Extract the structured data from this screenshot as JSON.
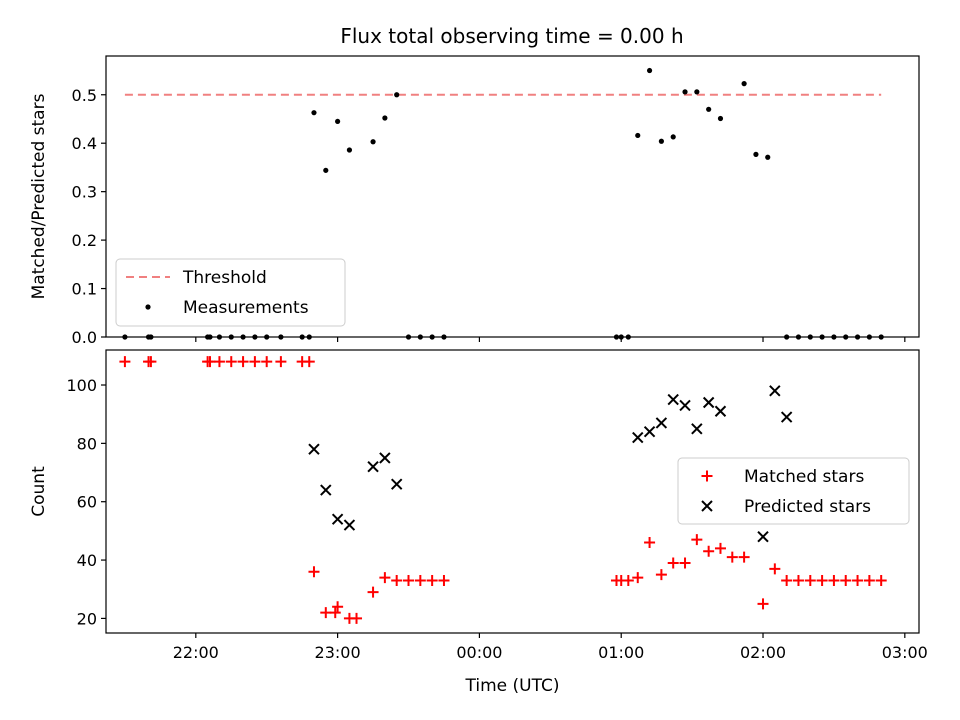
{
  "figure_title": "Flux total observing time = 0.00 h",
  "colors": {
    "threshold": "#f08080",
    "measurements": "#000000",
    "matched": "#ff0000",
    "predicted": "#000000"
  },
  "chart_data": [
    {
      "type": "scatter",
      "title": "Flux total observing time = 0.00 h",
      "xlabel": "",
      "ylabel": "Matched/Predicted stars",
      "xlim": [
        "21:22",
        "03:06"
      ],
      "ylim": [
        0,
        0.58
      ],
      "yticks": [
        0.0,
        0.1,
        0.2,
        0.3,
        0.4,
        0.5
      ],
      "xticks": [
        "22:00",
        "23:00",
        "00:00",
        "01:00",
        "02:00",
        "03:00"
      ],
      "legend": {
        "position": "lower-left",
        "entries": [
          "Threshold",
          "Measurements"
        ]
      },
      "threshold": {
        "name": "Threshold",
        "value": 0.5,
        "x_start": "21:30",
        "x_end": "02:50"
      },
      "series": [
        {
          "name": "Measurements",
          "marker": "dot",
          "points": [
            [
              "21:30",
              0
            ],
            [
              "21:40",
              0
            ],
            [
              "21:41",
              0
            ],
            [
              "22:05",
              0
            ],
            [
              "22:06",
              0
            ],
            [
              "22:10",
              0
            ],
            [
              "22:15",
              0
            ],
            [
              "22:20",
              0
            ],
            [
              "22:25",
              0
            ],
            [
              "22:30",
              0
            ],
            [
              "22:36",
              0
            ],
            [
              "22:45",
              0
            ],
            [
              "22:48",
              0
            ],
            [
              "22:50",
              0.463
            ],
            [
              "22:55",
              0.344
            ],
            [
              "23:00",
              0.445
            ],
            [
              "23:05",
              0.386
            ],
            [
              "23:15",
              0.403
            ],
            [
              "23:20",
              0.452
            ],
            [
              "23:25",
              0.5
            ],
            [
              "23:30",
              0
            ],
            [
              "23:35",
              0
            ],
            [
              "23:40",
              0
            ],
            [
              "23:45",
              0
            ],
            [
              "00:58",
              0
            ],
            [
              "01:00",
              0
            ],
            [
              "01:03",
              0
            ],
            [
              "01:07",
              0.416
            ],
            [
              "01:12",
              0.55
            ],
            [
              "01:17",
              0.404
            ],
            [
              "01:22",
              0.413
            ],
            [
              "01:27",
              0.506
            ],
            [
              "01:32",
              0.506
            ],
            [
              "01:37",
              0.47
            ],
            [
              "01:42",
              0.451
            ],
            [
              "01:52",
              0.523
            ],
            [
              "01:57",
              0.377
            ],
            [
              "02:02",
              0.371
            ],
            [
              "02:10",
              0
            ],
            [
              "02:15",
              0
            ],
            [
              "02:20",
              0
            ],
            [
              "02:25",
              0
            ],
            [
              "02:30",
              0
            ],
            [
              "02:35",
              0
            ],
            [
              "02:40",
              0
            ],
            [
              "02:45",
              0
            ],
            [
              "02:50",
              0
            ]
          ]
        }
      ]
    },
    {
      "type": "scatter",
      "title": "",
      "xlabel": "Time (UTC)",
      "ylabel": "Count",
      "xlim": [
        "21:22",
        "03:06"
      ],
      "ylim": [
        15,
        112
      ],
      "yticks": [
        20,
        40,
        60,
        80,
        100
      ],
      "xticks": [
        "22:00",
        "23:00",
        "00:00",
        "01:00",
        "02:00",
        "03:00"
      ],
      "legend": {
        "position": "center-right",
        "entries": [
          "Matched stars",
          "Predicted stars"
        ]
      },
      "series": [
        {
          "name": "Matched stars",
          "marker": "plus",
          "points": [
            [
              "21:30",
              108
            ],
            [
              "21:40",
              108
            ],
            [
              "21:41",
              108
            ],
            [
              "22:05",
              108
            ],
            [
              "22:06",
              108
            ],
            [
              "22:10",
              108
            ],
            [
              "22:15",
              108
            ],
            [
              "22:20",
              108
            ],
            [
              "22:25",
              108
            ],
            [
              "22:30",
              108
            ],
            [
              "22:36",
              108
            ],
            [
              "22:45",
              108
            ],
            [
              "22:48",
              108
            ],
            [
              "22:50",
              36
            ],
            [
              "22:55",
              22
            ],
            [
              "22:59",
              22
            ],
            [
              "23:00",
              24
            ],
            [
              "23:05",
              20
            ],
            [
              "23:08",
              20
            ],
            [
              "23:15",
              29
            ],
            [
              "23:20",
              34
            ],
            [
              "23:25",
              33
            ],
            [
              "23:30",
              33
            ],
            [
              "23:35",
              33
            ],
            [
              "23:40",
              33
            ],
            [
              "23:45",
              33
            ],
            [
              "00:58",
              33
            ],
            [
              "01:00",
              33
            ],
            [
              "01:03",
              33
            ],
            [
              "01:07",
              34
            ],
            [
              "01:12",
              46
            ],
            [
              "01:17",
              35
            ],
            [
              "01:22",
              39
            ],
            [
              "01:27",
              39
            ],
            [
              "01:32",
              47
            ],
            [
              "01:37",
              43
            ],
            [
              "01:42",
              44
            ],
            [
              "01:47",
              41
            ],
            [
              "01:52",
              41
            ],
            [
              "02:00",
              25
            ],
            [
              "02:05",
              37
            ],
            [
              "02:10",
              33
            ],
            [
              "02:15",
              33
            ],
            [
              "02:20",
              33
            ],
            [
              "02:25",
              33
            ],
            [
              "02:30",
              33
            ],
            [
              "02:35",
              33
            ],
            [
              "02:40",
              33
            ],
            [
              "02:45",
              33
            ],
            [
              "02:50",
              33
            ]
          ]
        },
        {
          "name": "Predicted stars",
          "marker": "x",
          "points": [
            [
              "22:50",
              78
            ],
            [
              "22:55",
              64
            ],
            [
              "23:00",
              54
            ],
            [
              "23:05",
              52
            ],
            [
              "23:15",
              72
            ],
            [
              "23:20",
              75
            ],
            [
              "23:25",
              66
            ],
            [
              "01:07",
              82
            ],
            [
              "01:12",
              84
            ],
            [
              "01:17",
              87
            ],
            [
              "01:22",
              95
            ],
            [
              "01:27",
              93
            ],
            [
              "01:32",
              85
            ],
            [
              "01:37",
              94
            ],
            [
              "01:42",
              91
            ],
            [
              "02:00",
              48
            ],
            [
              "02:05",
              98
            ],
            [
              "02:10",
              89
            ]
          ]
        }
      ]
    }
  ]
}
